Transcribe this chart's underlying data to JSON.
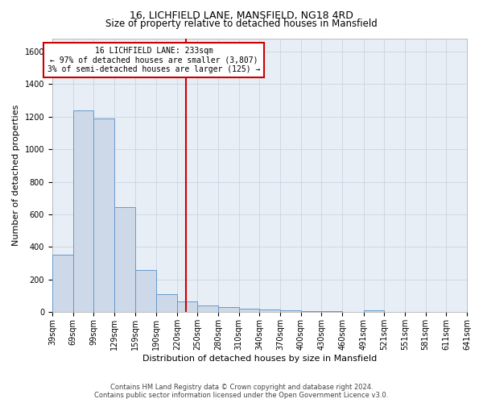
{
  "title": "16, LICHFIELD LANE, MANSFIELD, NG18 4RD",
  "subtitle": "Size of property relative to detached houses in Mansfield",
  "xlabel": "Distribution of detached houses by size in Mansfield",
  "ylabel": "Number of detached properties",
  "footer_line1": "Contains HM Land Registry data © Crown copyright and database right 2024.",
  "footer_line2": "Contains public sector information licensed under the Open Government Licence v3.0.",
  "bar_color": "#cdd9e8",
  "bar_edge_color": "#6699cc",
  "annotation_box_color": "#cc0000",
  "vline_color": "#cc0000",
  "property_sqm": 233,
  "annotation_title": "16 LICHFIELD LANE: 233sqm",
  "annotation_line1": "← 97% of detached houses are smaller (3,807)",
  "annotation_line2": "3% of semi-detached houses are larger (125) →",
  "bin_edges": [
    39,
    69,
    99,
    129,
    159,
    190,
    220,
    250,
    280,
    310,
    340,
    370,
    400,
    430,
    460,
    491,
    521,
    551,
    581,
    611,
    641
  ],
  "bar_heights": [
    355,
    1240,
    1190,
    645,
    260,
    113,
    68,
    40,
    30,
    20,
    15,
    10,
    8,
    5,
    0,
    10,
    0,
    0,
    0,
    0
  ],
  "ylim": [
    0,
    1680
  ],
  "yticks": [
    0,
    200,
    400,
    600,
    800,
    1000,
    1200,
    1400,
    1600
  ],
  "background_color": "#ffffff",
  "plot_bg_color": "#e8eef5",
  "grid_color": "#c8d4e3",
  "title_fontsize": 9,
  "subtitle_fontsize": 8.5,
  "tick_label_fontsize": 7,
  "ylabel_fontsize": 8,
  "xlabel_fontsize": 8,
  "annotation_fontsize": 7,
  "footer_fontsize": 6
}
